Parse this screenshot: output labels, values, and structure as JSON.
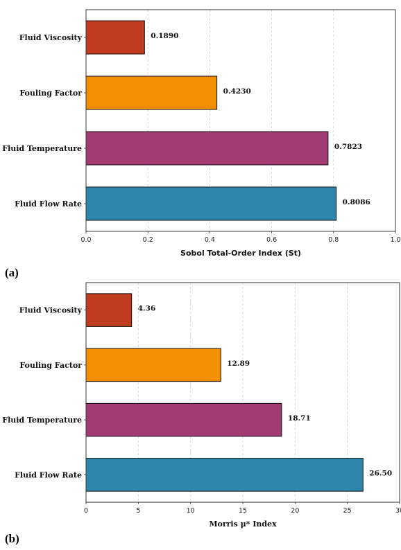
{
  "panels": {
    "a_label": "(a)",
    "b_label": "(b)"
  },
  "colors": {
    "Fluid Viscosity": "#C13C1E",
    "Fouling Factor": "#F28E00",
    "Fluid Temperature": "#A23B72",
    "Fluid Flow Rate": "#2E86AB"
  },
  "chart_data": [
    {
      "type": "bar",
      "orientation": "horizontal",
      "categories": [
        "Fluid Viscosity",
        "Fouling Factor",
        "Fluid Temperature",
        "Fluid Flow Rate"
      ],
      "values": [
        0.189,
        0.423,
        0.7823,
        0.8086
      ],
      "value_labels": [
        "0.1890",
        "0.4230",
        "0.7823",
        "0.8086"
      ],
      "xlabel": "Sobol Total-Order Index (St)",
      "xlim": [
        0,
        1.0
      ],
      "xticks": [
        0.0,
        0.2,
        0.4,
        0.6,
        0.8,
        1.0
      ],
      "xtick_labels": [
        "0.0",
        "0.2",
        "0.4",
        "0.6",
        "0.8",
        "1.0"
      ],
      "grid": "vertical dashed"
    },
    {
      "type": "bar",
      "orientation": "horizontal",
      "categories": [
        "Fluid Viscosity",
        "Fouling Factor",
        "Fluid Temperature",
        "Fluid Flow Rate"
      ],
      "values": [
        4.36,
        12.89,
        18.71,
        26.5
      ],
      "value_labels": [
        "4.36",
        "12.89",
        "18.71",
        "26.50"
      ],
      "xlabel": "Morris μ* Index",
      "xlim": [
        0,
        30
      ],
      "xticks": [
        0,
        5,
        10,
        15,
        20,
        25,
        30
      ],
      "xtick_labels": [
        "0",
        "5",
        "10",
        "15",
        "20",
        "25",
        "30"
      ],
      "grid": "vertical dashed"
    }
  ]
}
